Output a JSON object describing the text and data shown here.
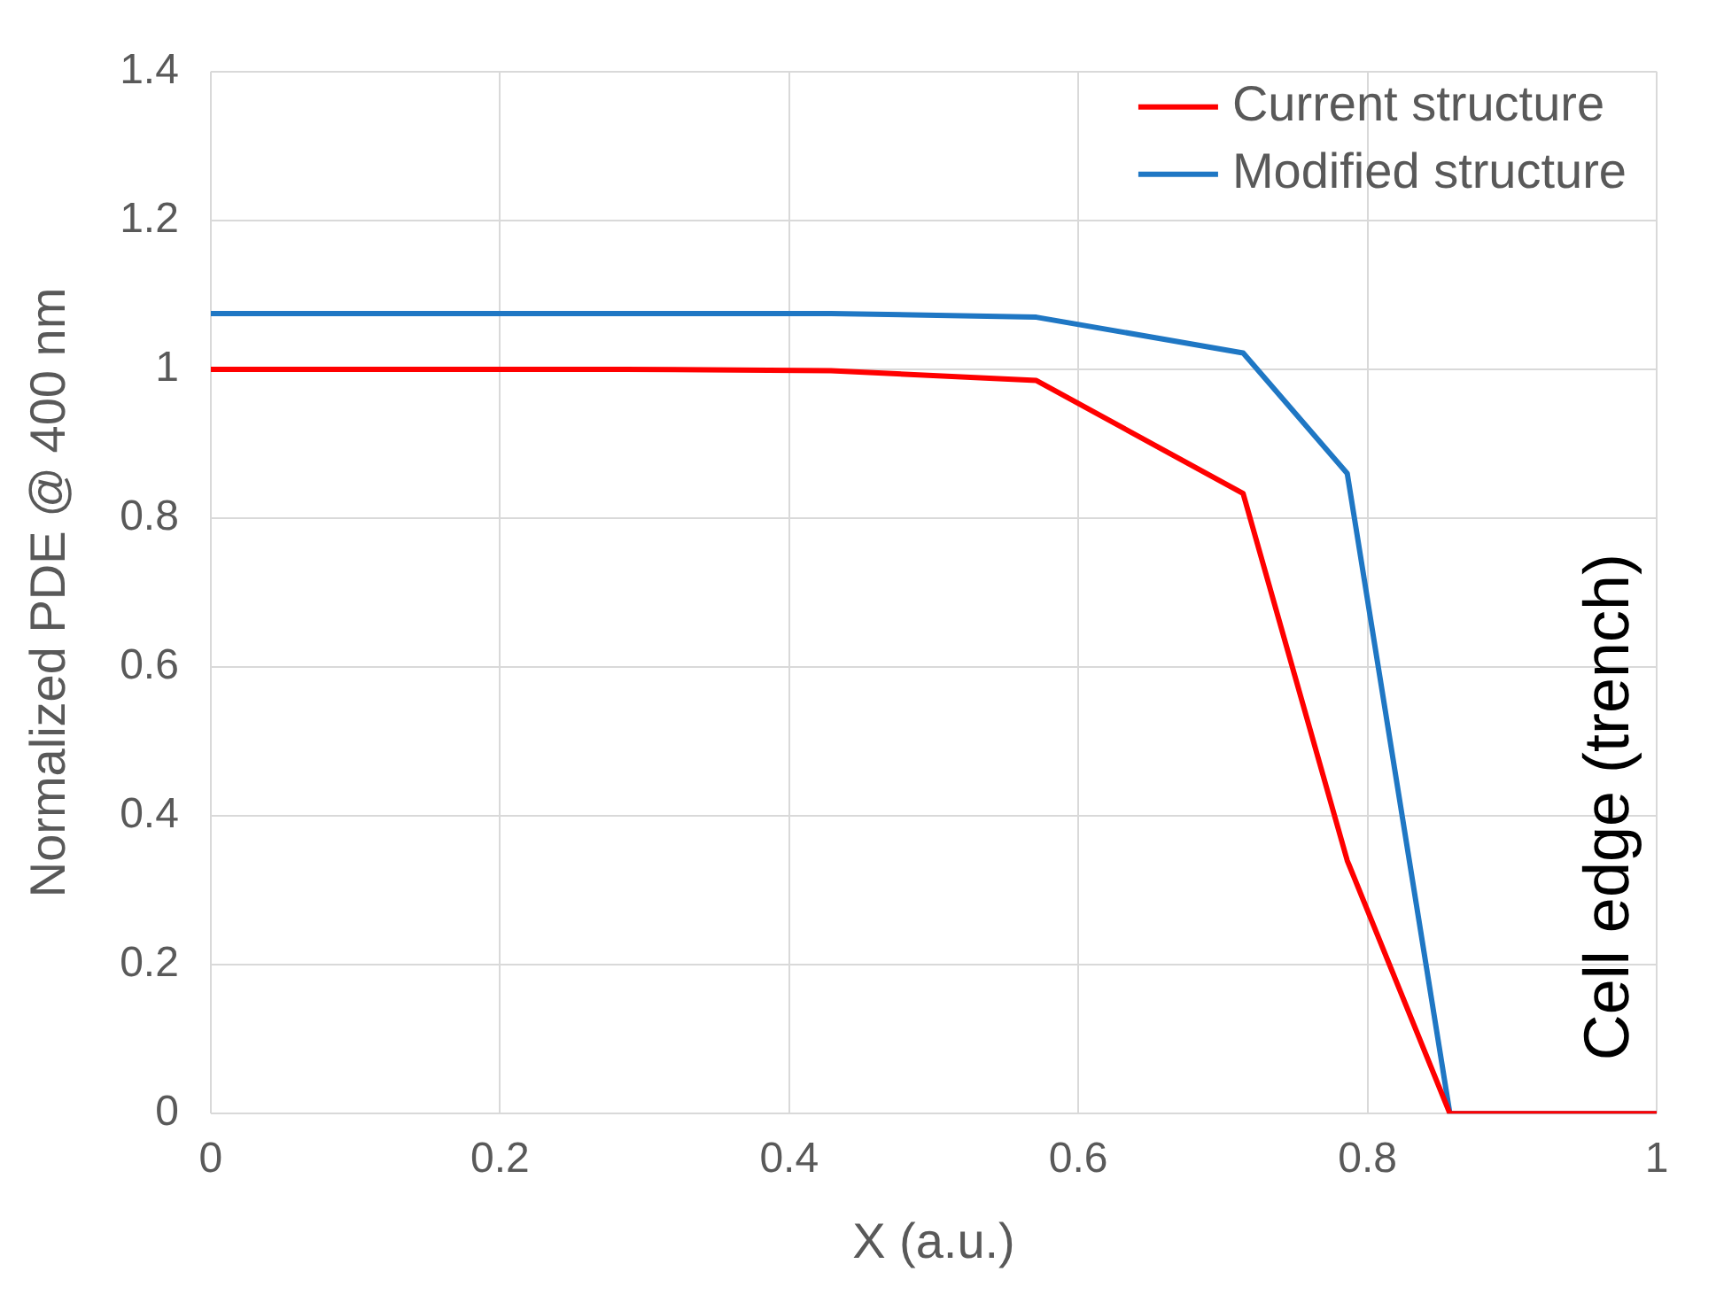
{
  "chart_data": {
    "type": "line",
    "xlabel": "X (a.u.)",
    "ylabel": "Normalized PDE @ 400 nm",
    "x": [
      0,
      0.143,
      0.286,
      0.429,
      0.571,
      0.714,
      0.786,
      0.857,
      1
    ],
    "series": [
      {
        "name": "Current structure",
        "color": "#ff0000",
        "values": [
          1.0,
          1.0,
          1.0,
          0.998,
          0.985,
          0.833,
          0.34,
          0,
          0
        ]
      },
      {
        "name": "Modified structure",
        "color": "#1f77c4",
        "values": [
          1.075,
          1.075,
          1.075,
          1.075,
          1.07,
          1.022,
          0.86,
          0,
          0
        ]
      }
    ],
    "xlim": [
      0,
      1
    ],
    "xticks": [
      0,
      0.2,
      0.4,
      0.6,
      0.8,
      1
    ],
    "ylim": [
      0,
      1.4
    ],
    "yticks": [
      0,
      0.2,
      0.4,
      0.6,
      0.8,
      1,
      1.2,
      1.4
    ],
    "grid": true,
    "legend": "top right",
    "marker": "none",
    "line_style": "solid",
    "annotations": [
      "Cell edge (trench)"
    ]
  }
}
